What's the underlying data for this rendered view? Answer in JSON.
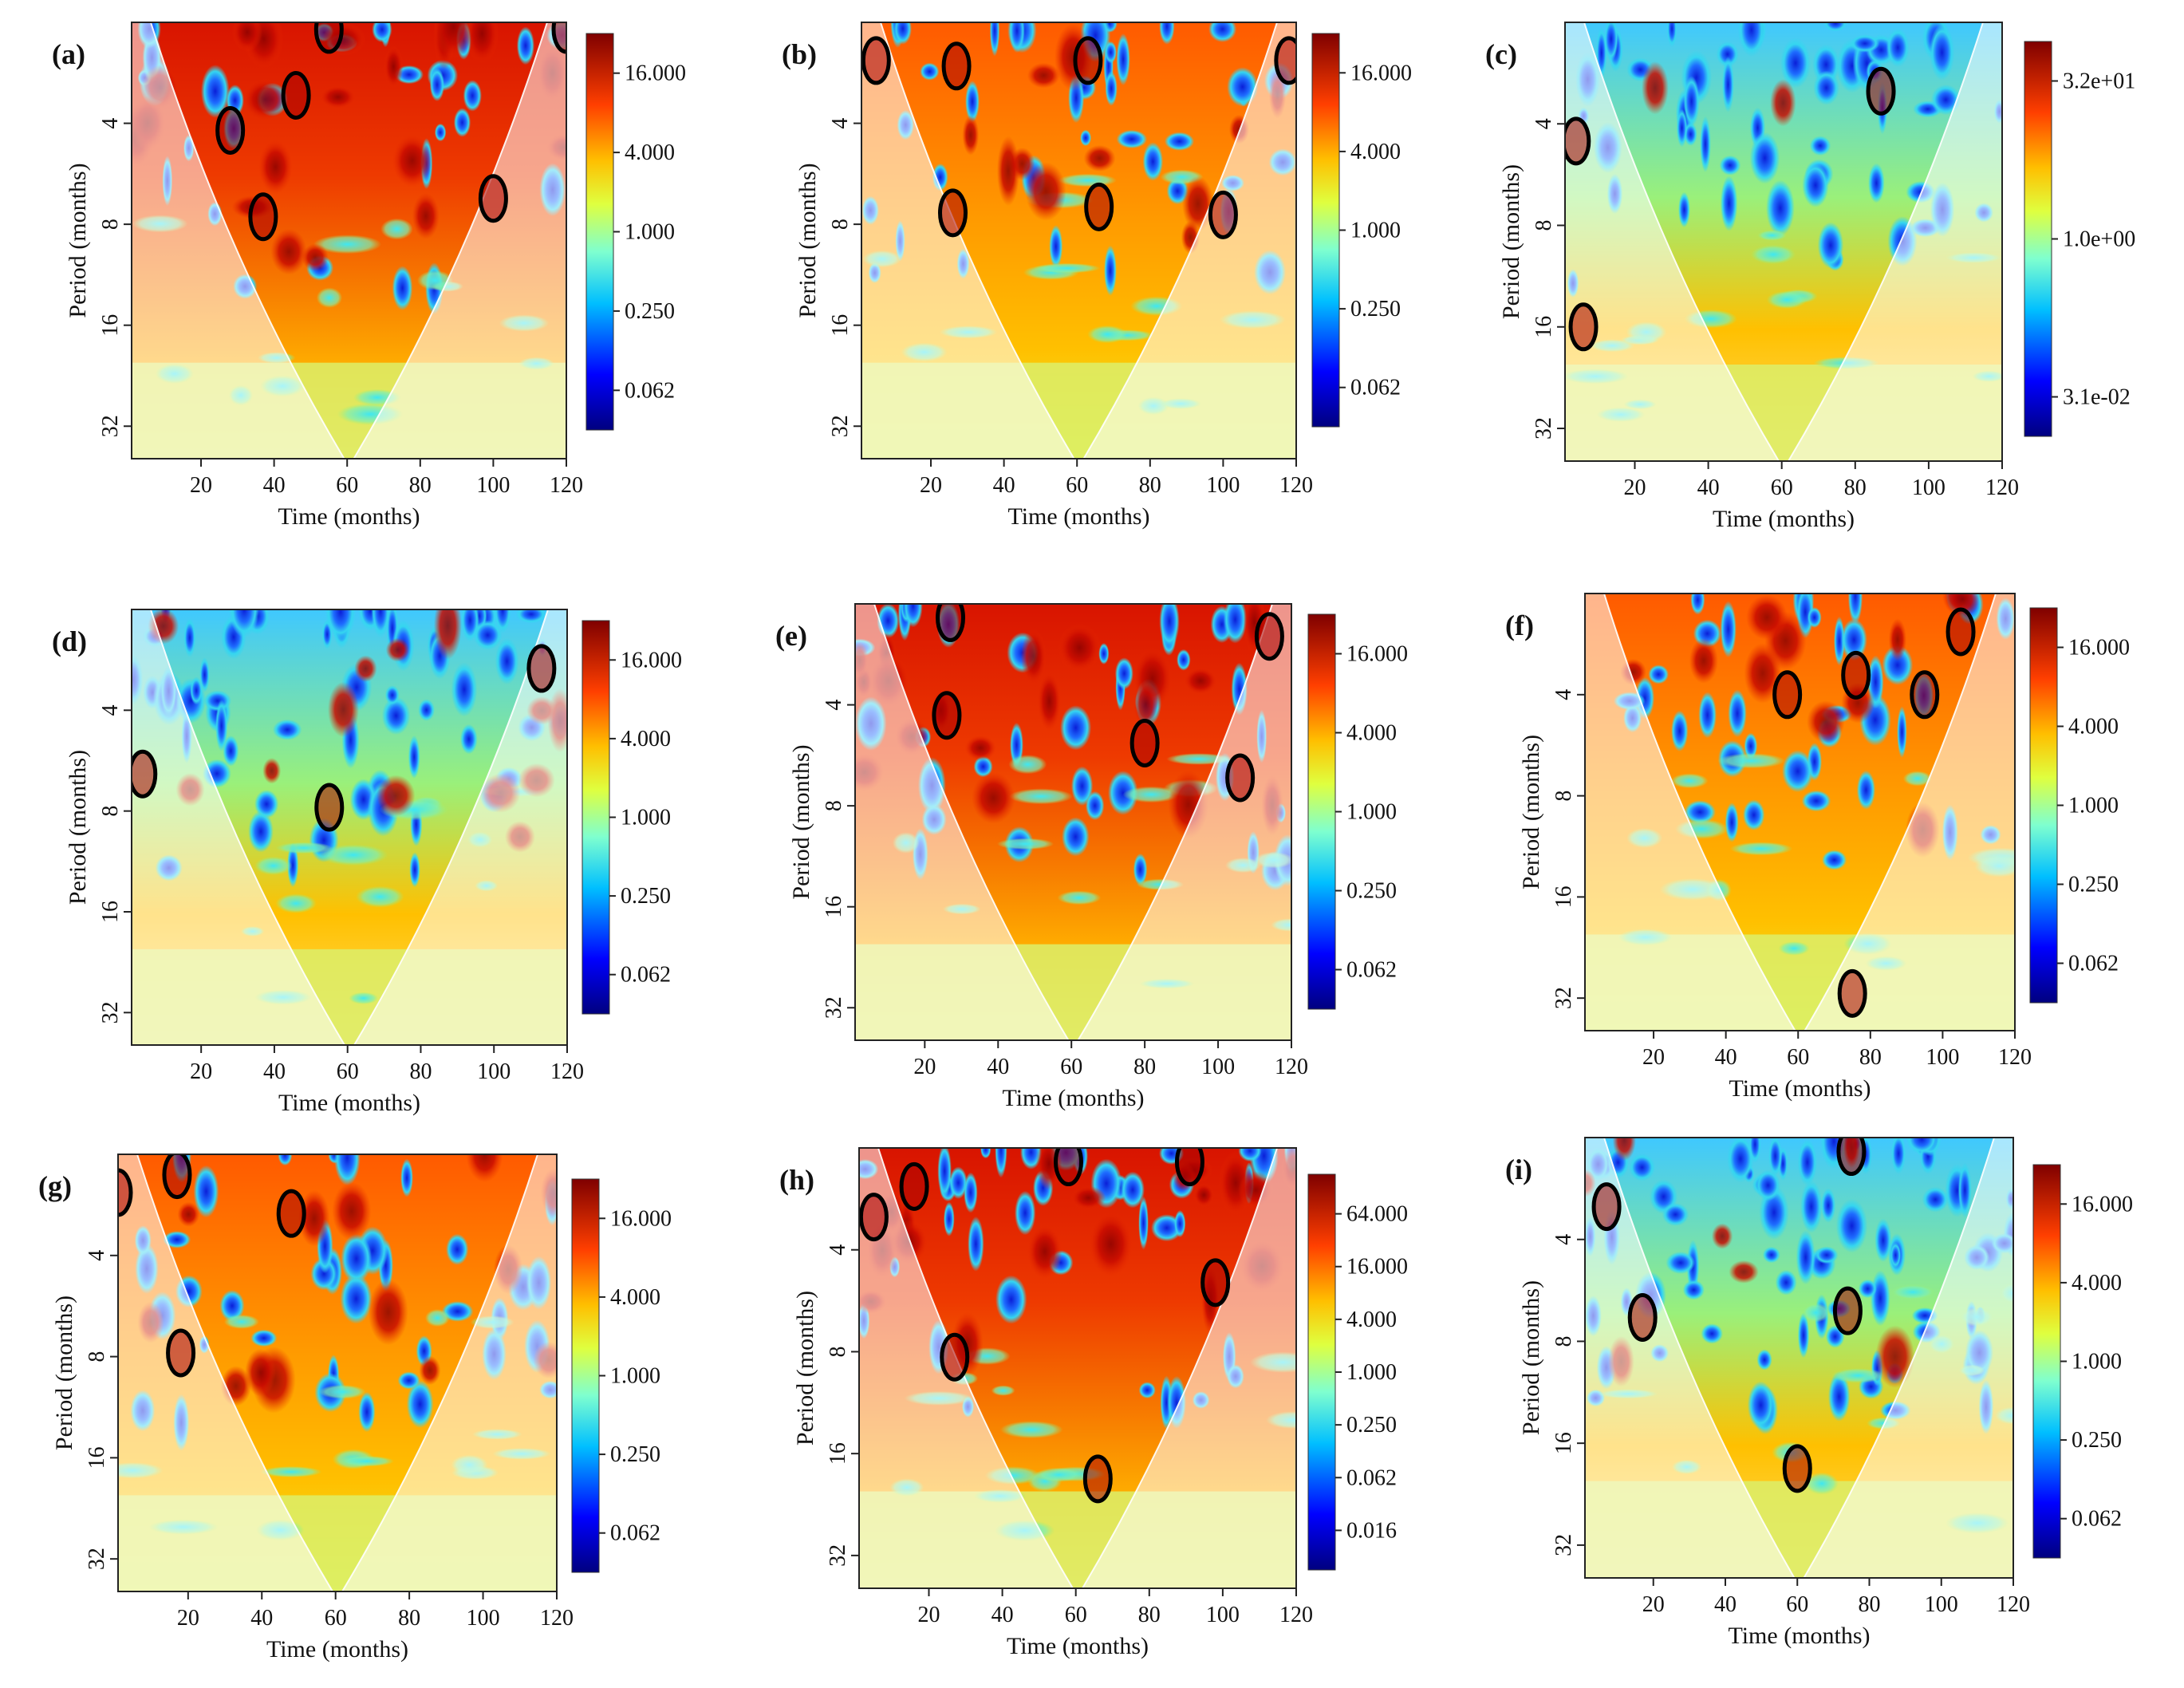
{
  "figure": {
    "panels": [
      {
        "label": "(a)",
        "xlabel": "Time (months)",
        "ylabel": "Period (months)"
      },
      {
        "label": "(b)",
        "xlabel": "Time (months)",
        "ylabel": "Period (months)"
      },
      {
        "label": "(c)",
        "xlabel": "Time (months)",
        "ylabel": "Period (months)"
      },
      {
        "label": "(d)",
        "xlabel": "Time (months)",
        "ylabel": "Period (months)"
      },
      {
        "label": "(e)",
        "xlabel": "Time (months)",
        "ylabel": "Period (months)"
      },
      {
        "label": "(f)",
        "xlabel": "Time (months)",
        "ylabel": "Period (months)"
      },
      {
        "label": "(g)",
        "xlabel": "Time (months)",
        "ylabel": "Period (months)"
      },
      {
        "label": "(h)",
        "xlabel": "Time (months)",
        "ylabel": "Period (months)"
      },
      {
        "label": "(i)",
        "xlabel": "Time (months)",
        "ylabel": "Period (months)"
      }
    ]
  },
  "chart_data": [
    {
      "type": "heatmap",
      "panel": "(a)",
      "xlabel": "Time (months)",
      "ylabel": "Period (months)",
      "x_ticks": [
        20,
        40,
        60,
        80,
        100,
        120
      ],
      "y_ticks": [
        4,
        8,
        16,
        32
      ],
      "y_scale": "log2",
      "xlim": [
        1,
        120
      ],
      "ylim": [
        2,
        40
      ],
      "colorbar_ticks": [
        "16.000",
        "4.000",
        "1.000",
        "0.250",
        "0.062"
      ],
      "significant_regions": [
        {
          "x": 28,
          "y": 4.2
        },
        {
          "x": 37,
          "y": 7.6
        },
        {
          "x": 46,
          "y": 3.3
        },
        {
          "x": 100,
          "y": 6.7
        },
        {
          "x": 55,
          "y": 2.1
        },
        {
          "x": 120,
          "y": 2.1
        }
      ]
    },
    {
      "type": "heatmap",
      "panel": "(b)",
      "xlabel": "Time (months)",
      "ylabel": "Period (months)",
      "x_ticks": [
        20,
        40,
        60,
        80,
        100,
        120
      ],
      "y_ticks": [
        4,
        8,
        16,
        32
      ],
      "y_scale": "log2",
      "xlim": [
        1,
        120
      ],
      "ylim": [
        2,
        40
      ],
      "colorbar_ticks": [
        "16.000",
        "4.000",
        "1.000",
        "0.250",
        "0.062"
      ],
      "significant_regions": [
        {
          "x": 5,
          "y": 2.6
        },
        {
          "x": 27,
          "y": 2.7
        },
        {
          "x": 26,
          "y": 7.4
        },
        {
          "x": 63,
          "y": 2.6
        },
        {
          "x": 66,
          "y": 7.1
        },
        {
          "x": 100,
          "y": 7.5
        },
        {
          "x": 118,
          "y": 2.6
        }
      ]
    },
    {
      "type": "heatmap",
      "panel": "(c)",
      "xlabel": "Time (months)",
      "ylabel": "Period (months)",
      "x_ticks": [
        20,
        40,
        60,
        80,
        100,
        120
      ],
      "y_ticks": [
        4,
        8,
        16,
        32
      ],
      "y_scale": "log2",
      "xlim": [
        1,
        120
      ],
      "ylim": [
        2,
        40
      ],
      "colorbar_ticks": [
        "3.2e+01",
        "1.0e+00",
        "3.1e-02"
      ],
      "significant_regions": [
        {
          "x": 4,
          "y": 4.5
        },
        {
          "x": 6,
          "y": 16
        },
        {
          "x": 87,
          "y": 3.2
        }
      ]
    },
    {
      "type": "heatmap",
      "panel": "(d)",
      "xlabel": "Time (months)",
      "ylabel": "Period (months)",
      "x_ticks": [
        20,
        40,
        60,
        80,
        100,
        120
      ],
      "y_ticks": [
        4,
        8,
        16,
        32
      ],
      "y_scale": "log2",
      "xlim": [
        1,
        120
      ],
      "ylim": [
        2,
        40
      ],
      "colorbar_ticks": [
        "16.000",
        "4.000",
        "1.000",
        "0.250",
        "0.062"
      ],
      "significant_regions": [
        {
          "x": 55,
          "y": 7.8
        },
        {
          "x": 113,
          "y": 3.0
        },
        {
          "x": 4,
          "y": 6.2
        }
      ]
    },
    {
      "type": "heatmap",
      "panel": "(e)",
      "xlabel": "Time (months)",
      "ylabel": "Period (months)",
      "x_ticks": [
        20,
        40,
        60,
        80,
        100,
        120
      ],
      "y_ticks": [
        4,
        8,
        16,
        32
      ],
      "y_scale": "log2",
      "xlim": [
        1,
        120
      ],
      "ylim": [
        2,
        40
      ],
      "colorbar_ticks": [
        "16.000",
        "4.000",
        "1.000",
        "0.250",
        "0.062"
      ],
      "significant_regions": [
        {
          "x": 26,
          "y": 4.3
        },
        {
          "x": 27,
          "y": 2.2
        },
        {
          "x": 80,
          "y": 5.2
        },
        {
          "x": 106,
          "y": 6.6
        },
        {
          "x": 114,
          "y": 2.5
        }
      ]
    },
    {
      "type": "heatmap",
      "panel": "(f)",
      "xlabel": "Time (months)",
      "ylabel": "Period (months)",
      "x_ticks": [
        20,
        40,
        60,
        80,
        100,
        120
      ],
      "y_ticks": [
        4,
        8,
        16,
        32
      ],
      "y_scale": "log2",
      "xlim": [
        1,
        120
      ],
      "ylim": [
        2,
        40
      ],
      "colorbar_ticks": [
        "16.000",
        "4.000",
        "1.000",
        "0.250",
        "0.062"
      ],
      "significant_regions": [
        {
          "x": 57,
          "y": 4.0
        },
        {
          "x": 76,
          "y": 3.5
        },
        {
          "x": 95,
          "y": 4.0
        },
        {
          "x": 105,
          "y": 2.6
        },
        {
          "x": 75,
          "y": 31
        }
      ]
    },
    {
      "type": "heatmap",
      "panel": "(g)",
      "xlabel": "Time (months)",
      "ylabel": "Period (months)",
      "x_ticks": [
        20,
        40,
        60,
        80,
        100,
        120
      ],
      "y_ticks": [
        4,
        8,
        16,
        32
      ],
      "y_scale": "log2",
      "xlim": [
        1,
        120
      ],
      "ylim": [
        2,
        40
      ],
      "colorbar_ticks": [
        "16.000",
        "4.000",
        "1.000",
        "0.250",
        "0.062"
      ],
      "significant_regions": [
        {
          "x": 18,
          "y": 7.8
        },
        {
          "x": 17,
          "y": 2.3
        },
        {
          "x": 48,
          "y": 3.0
        },
        {
          "x": 1,
          "y": 2.6
        }
      ]
    },
    {
      "type": "heatmap",
      "panel": "(h)",
      "xlabel": "Time (months)",
      "ylabel": "Period (months)",
      "x_ticks": [
        20,
        40,
        60,
        80,
        100,
        120
      ],
      "y_ticks": [
        4,
        8,
        16,
        32
      ],
      "y_scale": "log2",
      "xlim": [
        1,
        120
      ],
      "ylim": [
        2,
        40
      ],
      "colorbar_ticks": [
        "64.000",
        "16.000",
        "4.000",
        "1.000",
        "0.250",
        "0.062",
        "0.016"
      ],
      "significant_regions": [
        {
          "x": 16,
          "y": 2.6
        },
        {
          "x": 5,
          "y": 3.2
        },
        {
          "x": 27,
          "y": 8.3
        },
        {
          "x": 58,
          "y": 2.2
        },
        {
          "x": 91,
          "y": 2.2
        },
        {
          "x": 98,
          "y": 5.0
        },
        {
          "x": 66,
          "y": 19
        }
      ]
    },
    {
      "type": "heatmap",
      "panel": "(i)",
      "xlabel": "Time (months)",
      "ylabel": "Period (months)",
      "x_ticks": [
        20,
        40,
        60,
        80,
        100,
        120
      ],
      "y_ticks": [
        4,
        8,
        16,
        32
      ],
      "y_scale": "log2",
      "xlim": [
        1,
        120
      ],
      "ylim": [
        2,
        40
      ],
      "colorbar_ticks": [
        "16.000",
        "4.000",
        "1.000",
        "0.250",
        "0.062"
      ],
      "significant_regions": [
        {
          "x": 7,
          "y": 3.2
        },
        {
          "x": 17,
          "y": 6.8
        },
        {
          "x": 75,
          "y": 2.2
        },
        {
          "x": 74,
          "y": 6.5
        },
        {
          "x": 60,
          "y": 19
        }
      ]
    }
  ]
}
